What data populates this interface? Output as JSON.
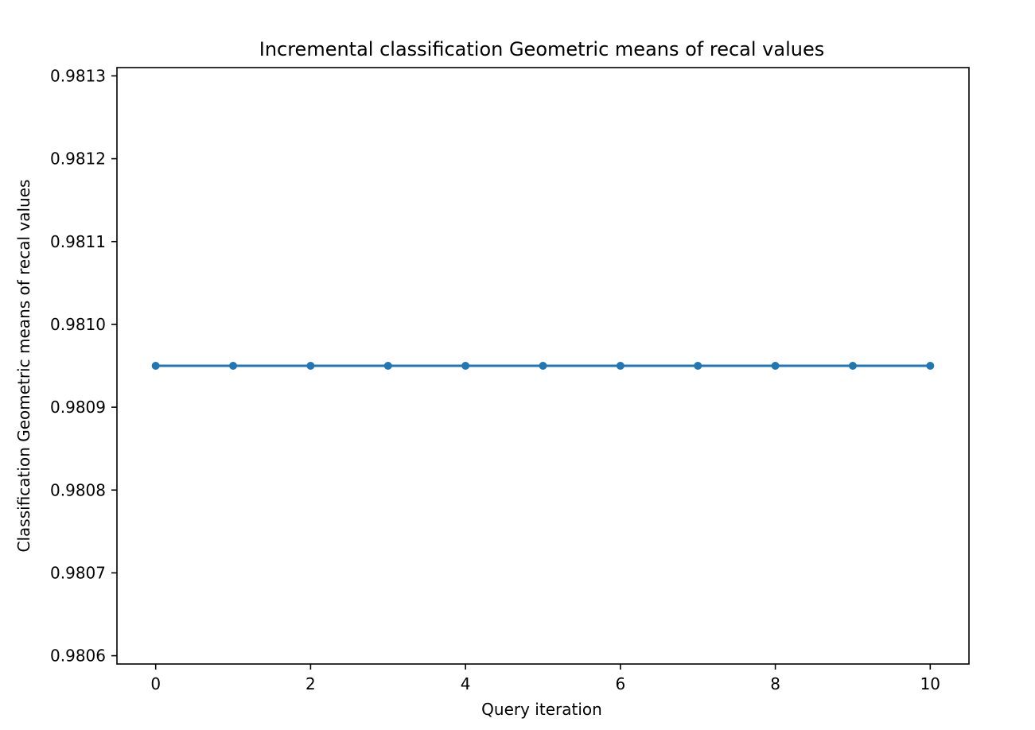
{
  "chart_data": {
    "type": "line",
    "title": "Incremental classification Geometric means of recal values",
    "xlabel": "Query iteration",
    "ylabel": "Classification Geometric means of recal values",
    "xlim": [
      -0.5,
      10.5
    ],
    "ylim": [
      0.98059,
      0.98131
    ],
    "x_ticks": [
      0,
      2,
      4,
      6,
      8,
      10
    ],
    "x_tick_labels": [
      "0",
      "2",
      "4",
      "6",
      "8",
      "10"
    ],
    "y_ticks": [
      0.9806,
      0.9807,
      0.9808,
      0.9809,
      0.981,
      0.9811,
      0.9812,
      0.9813
    ],
    "y_tick_labels": [
      "0.9806",
      "0.9807",
      "0.9808",
      "0.9809",
      "0.9810",
      "0.9811",
      "0.9812",
      "0.9813"
    ],
    "grid": false,
    "legend": "none",
    "series": [
      {
        "color": "#1f77b4",
        "marker": "circle",
        "x": [
          0,
          1,
          2,
          3,
          4,
          5,
          6,
          7,
          8,
          9,
          10
        ],
        "y": [
          0.98095,
          0.98095,
          0.98095,
          0.98095,
          0.98095,
          0.98095,
          0.98095,
          0.98095,
          0.98095,
          0.98095,
          0.98095
        ]
      }
    ]
  }
}
